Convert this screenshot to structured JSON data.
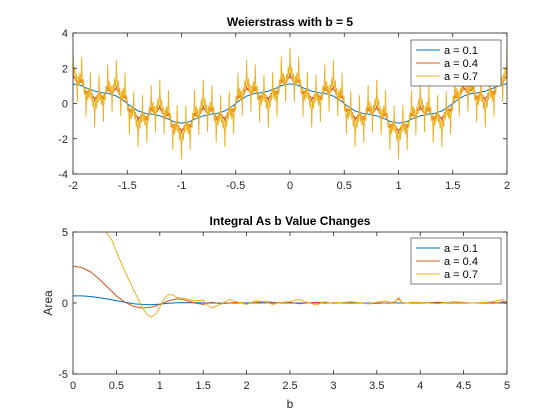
{
  "chart_data": [
    {
      "type": "line",
      "title": "Weierstrass with b = 5",
      "xlabel": "",
      "ylabel": "",
      "xlim": [
        -2,
        2
      ],
      "ylim": [
        -4,
        4
      ],
      "xticks": [
        "-2",
        "-1.5",
        "-1",
        "-0.5",
        "0",
        "0.5",
        "1",
        "1.5",
        "2"
      ],
      "yticks": [
        "-4",
        "-2",
        "0",
        "2",
        "4"
      ],
      "grid": false,
      "legend_position": "top-right",
      "b": 5,
      "terms": 8,
      "x_range": [
        -2,
        2
      ],
      "series": [
        {
          "name": "a = 0.1",
          "a": 0.1,
          "color": "#0072BD"
        },
        {
          "name": "a = 0.4",
          "a": 0.4,
          "color": "#D95319"
        },
        {
          "name": "a = 0.7",
          "a": 0.7,
          "color": "#EDB120"
        }
      ]
    },
    {
      "type": "line",
      "title": "Integral As b Value Changes",
      "xlabel": "b",
      "ylabel": "Area",
      "xlim": [
        0,
        5
      ],
      "ylim": [
        -5,
        5
      ],
      "xticks": [
        "0",
        "0.5",
        "1",
        "1.5",
        "2",
        "2.5",
        "3",
        "3.5",
        "4",
        "4.5",
        "5"
      ],
      "yticks": [
        "-5",
        "0",
        "5"
      ],
      "grid": false,
      "legend_position": "top-right",
      "series": [
        {
          "name": "a = 0.1",
          "color": "#0072BD",
          "x": [
            0,
            0.1,
            0.2,
            0.3,
            0.4,
            0.5,
            0.6,
            0.7,
            0.8,
            0.9,
            1.0,
            1.1,
            1.2,
            1.3,
            1.5,
            1.7,
            2.0,
            2.5,
            3.0,
            3.5,
            4.0,
            4.5,
            5.0
          ],
          "y": [
            0.5,
            0.5,
            0.46,
            0.38,
            0.28,
            0.16,
            0.05,
            -0.05,
            -0.11,
            -0.12,
            -0.08,
            -0.02,
            0.02,
            0.03,
            0.01,
            -0.01,
            0.01,
            0.0,
            0.0,
            0.0,
            0.0,
            0.0,
            0.0
          ]
        },
        {
          "name": "a = 0.4",
          "color": "#D95319",
          "x": [
            0,
            0.1,
            0.2,
            0.3,
            0.4,
            0.5,
            0.6,
            0.7,
            0.8,
            0.9,
            1.0,
            1.1,
            1.2,
            1.3,
            1.4,
            1.5,
            1.6,
            1.7,
            1.8,
            1.9,
            2.0,
            2.2,
            2.4,
            2.5,
            2.6,
            2.8,
            3.0,
            3.2,
            3.4,
            3.6,
            3.7,
            3.75,
            3.8,
            4.0,
            4.2,
            4.4,
            4.6,
            4.8,
            4.9,
            4.95,
            5.0
          ],
          "y": [
            2.6,
            2.5,
            2.2,
            1.7,
            1.1,
            0.5,
            0.05,
            -0.25,
            -0.35,
            -0.3,
            -0.1,
            0.15,
            0.3,
            0.2,
            0.0,
            -0.1,
            0.05,
            -0.05,
            0.0,
            0.05,
            -0.05,
            0.1,
            0.0,
            0.05,
            -0.05,
            0.05,
            0.0,
            0.05,
            -0.05,
            0.0,
            0.05,
            0.3,
            0.0,
            0.0,
            0.05,
            0.0,
            0.0,
            0.05,
            0.0,
            0.1,
            0.0
          ]
        },
        {
          "name": "a = 0.7",
          "color": "#EDB120",
          "x": [
            0.38,
            0.45,
            0.5,
            0.6,
            0.7,
            0.8,
            0.85,
            0.9,
            0.95,
            1.0,
            1.05,
            1.1,
            1.15,
            1.2,
            1.3,
            1.4,
            1.5,
            1.55,
            1.6,
            1.7,
            1.8,
            1.9,
            2.0,
            2.1,
            2.2,
            2.3,
            2.4,
            2.5,
            2.6,
            2.7,
            2.8,
            2.9,
            3.0,
            3.2,
            3.4,
            3.5,
            3.6,
            3.7,
            3.75,
            3.8,
            3.9,
            4.0,
            4.2,
            4.4,
            4.6,
            4.8,
            4.95,
            5.0
          ],
          "y": [
            5.0,
            4.4,
            3.6,
            2.2,
            0.9,
            -0.3,
            -0.8,
            -1.0,
            -0.8,
            -0.3,
            0.3,
            0.6,
            0.55,
            0.4,
            0.3,
            0.15,
            0.2,
            -0.15,
            -0.35,
            -0.1,
            0.25,
            0.05,
            -0.1,
            0.15,
            0.1,
            -0.1,
            0.05,
            0.1,
            0.25,
            0.05,
            -0.15,
            0.1,
            -0.05,
            0.1,
            -0.05,
            0.05,
            0.15,
            -0.05,
            0.4,
            -0.05,
            0.05,
            0.05,
            -0.05,
            0.1,
            0.0,
            0.05,
            0.25,
            0.05
          ]
        }
      ]
    }
  ]
}
